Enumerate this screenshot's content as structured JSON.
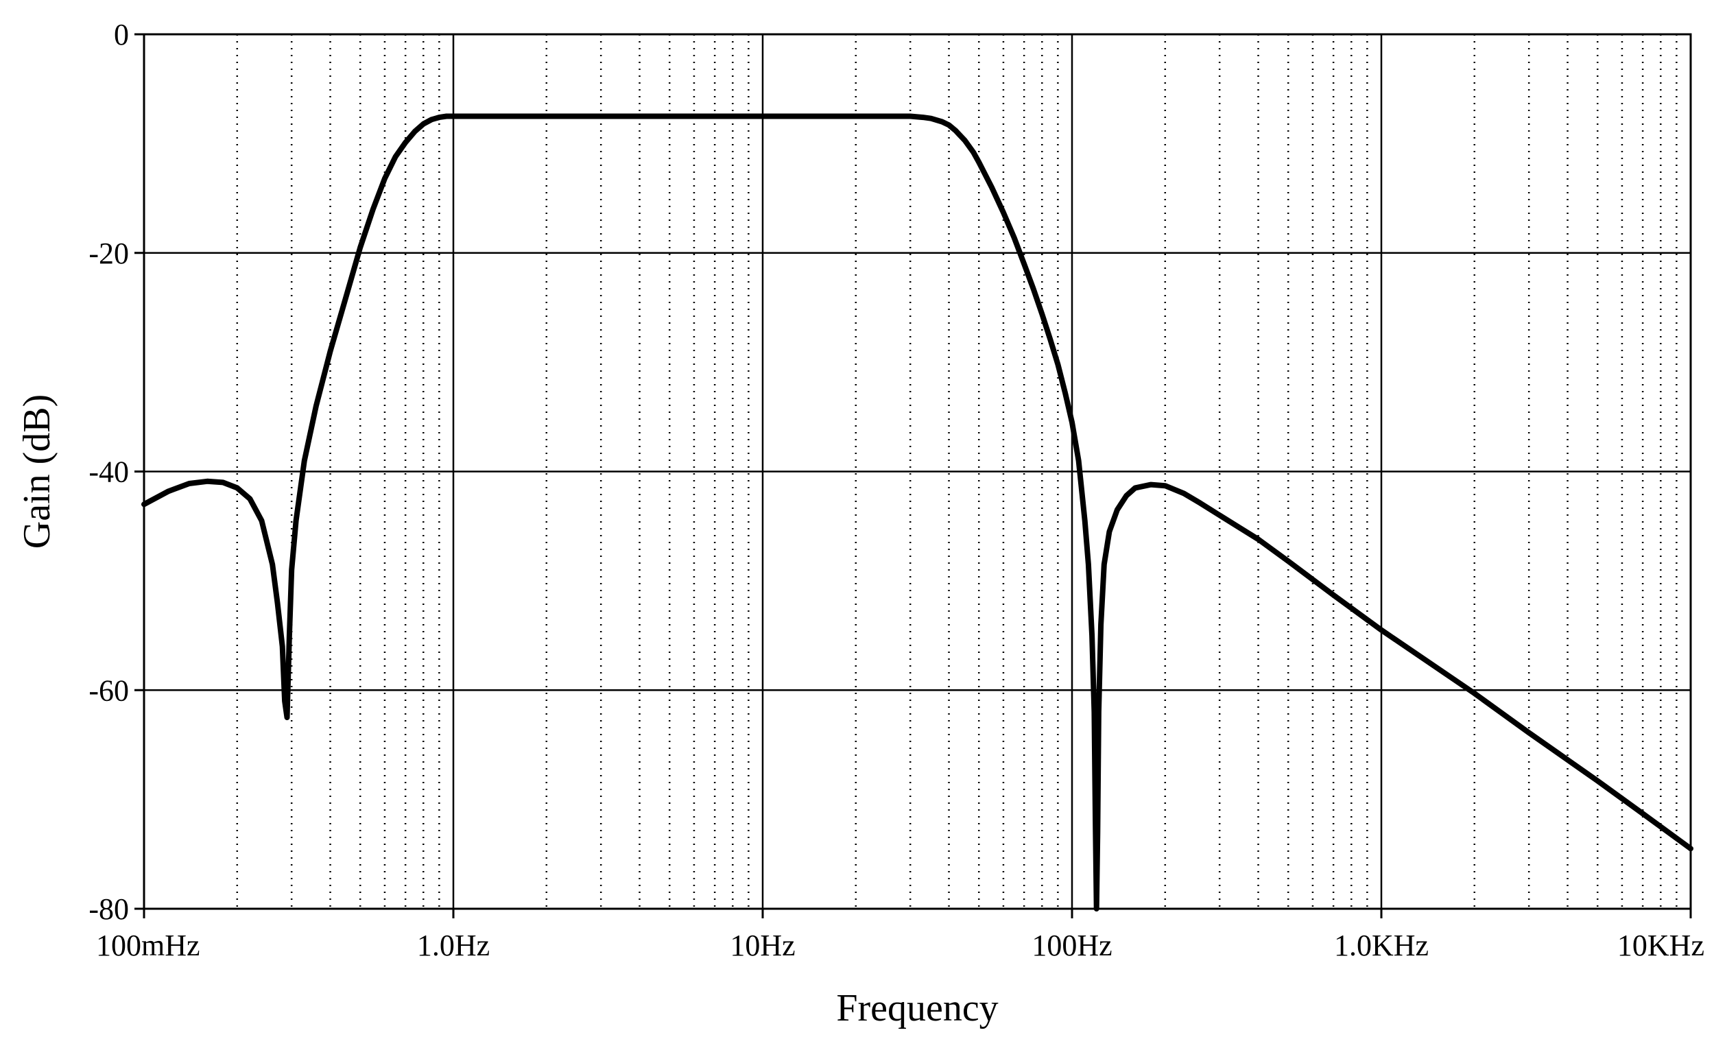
{
  "chart_data": {
    "type": "line",
    "title": "",
    "xlabel": "Frequency",
    "ylabel": "Gain (dB)",
    "x_scale": "log",
    "xlim": [
      0.1,
      10000
    ],
    "ylim": [
      -80,
      0
    ],
    "grid": true,
    "x_ticks": [
      {
        "value": 0.1,
        "label": "100mHz"
      },
      {
        "value": 1,
        "label": "1.0Hz"
      },
      {
        "value": 10,
        "label": "10Hz"
      },
      {
        "value": 100,
        "label": "100Hz"
      },
      {
        "value": 1000,
        "label": "1.0KHz"
      },
      {
        "value": 10000,
        "label": "10KHz"
      }
    ],
    "y_ticks": [
      {
        "value": 0,
        "label": "0"
      },
      {
        "value": -20,
        "label": "-20"
      },
      {
        "value": -40,
        "label": "-40"
      },
      {
        "value": -60,
        "label": "-60"
      },
      {
        "value": -80,
        "label": "-80"
      }
    ],
    "series": [
      {
        "color": "#000000",
        "x": [
          0.1,
          0.12,
          0.14,
          0.16,
          0.18,
          0.2,
          0.22,
          0.24,
          0.26,
          0.27,
          0.28,
          0.285,
          0.29,
          0.295,
          0.3,
          0.31,
          0.33,
          0.36,
          0.4,
          0.45,
          0.5,
          0.55,
          0.6,
          0.65,
          0.7,
          0.75,
          0.8,
          0.85,
          0.9,
          0.95,
          1.0,
          2,
          5,
          10,
          20,
          30,
          33,
          35,
          38,
          40,
          42,
          45,
          48,
          50,
          55,
          60,
          65,
          70,
          75,
          80,
          85,
          90,
          95,
          100,
          105,
          110,
          113,
          116,
          118,
          119,
          120,
          121,
          122,
          124,
          127,
          132,
          140,
          150,
          160,
          180,
          200,
          230,
          260,
          300,
          400,
          500,
          700,
          1000,
          2000,
          3000,
          5000,
          7000,
          10000
        ],
        "y": [
          -43,
          -41.8,
          -41.1,
          -40.9,
          -41.0,
          -41.5,
          -42.5,
          -44.5,
          -48.5,
          -52,
          -56,
          -61,
          -62.5,
          -55,
          -49,
          -44.5,
          -39,
          -34,
          -29,
          -24,
          -19.5,
          -16,
          -13.2,
          -11.2,
          -9.9,
          -8.9,
          -8.2,
          -7.8,
          -7.6,
          -7.5,
          -7.5,
          -7.5,
          -7.5,
          -7.5,
          -7.5,
          -7.5,
          -7.6,
          -7.7,
          -8.0,
          -8.3,
          -8.8,
          -9.7,
          -10.8,
          -11.7,
          -14,
          -16.3,
          -18.6,
          -21,
          -23.3,
          -25.6,
          -27.9,
          -30.2,
          -32.8,
          -35.5,
          -39,
          -44.5,
          -48.5,
          -55,
          -62,
          -72,
          -80,
          -73,
          -62,
          -54,
          -48.5,
          -45.5,
          -43.5,
          -42.2,
          -41.5,
          -41.2,
          -41.3,
          -42,
          -42.9,
          -44,
          -46.2,
          -48.2,
          -51.3,
          -54.5,
          -60.3,
          -63.9,
          -68.3,
          -71.3,
          -74.5
        ]
      }
    ]
  }
}
